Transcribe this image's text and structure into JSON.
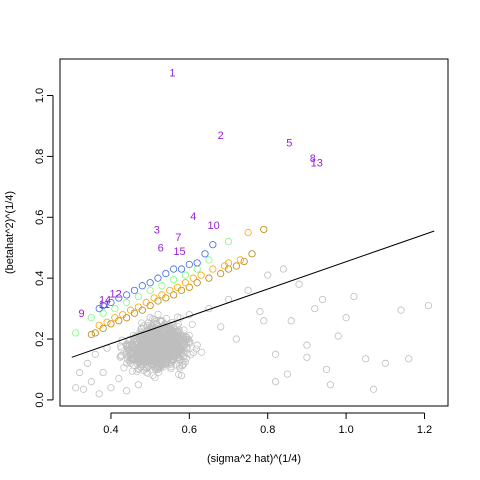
{
  "chart_data": {
    "type": "scatter",
    "title": "",
    "xlabel": "(sigma^2 hat)^(1/4)",
    "ylabel": "(betahat^2)^(1/4)",
    "xlim": [
      0.27,
      1.26
    ],
    "ylim": [
      -0.02,
      1.12
    ],
    "x_ticks": [
      0.4,
      0.6,
      0.8,
      1.0,
      1.2
    ],
    "x_tick_labels": [
      "0.4",
      "0.6",
      "0.8",
      "1.0",
      "1.2"
    ],
    "y_ticks": [
      0.0,
      0.2,
      0.4,
      0.6,
      0.8,
      1.0
    ],
    "y_tick_labels": [
      "0.0",
      "0.2",
      "0.4",
      "0.6",
      "0.8",
      "1.0"
    ],
    "grid": false,
    "legend": "none",
    "fit_line": {
      "x": [
        0.3,
        1.225
      ],
      "y": [
        0.14,
        0.555
      ],
      "color": "#000000"
    },
    "colors": {
      "gray": "#bebebe",
      "darkorange": "#b8860b",
      "orange": "#ffa500",
      "green": "#7cfc7c",
      "blue": "#4169e1",
      "purple": "#9a1fd8"
    },
    "series": [
      {
        "color_key": "gray",
        "x": [
          0.31,
          0.32,
          0.33,
          0.34,
          0.35,
          0.36,
          0.37,
          0.38,
          0.39,
          0.4,
          0.42,
          0.44,
          0.45,
          0.47,
          0.48,
          0.5,
          0.52,
          0.55,
          0.58,
          0.6,
          0.62,
          0.65,
          0.68,
          0.7,
          0.72,
          0.75,
          0.78,
          0.8,
          0.82,
          0.84,
          0.86,
          0.88,
          0.9,
          0.92,
          0.94,
          0.96,
          0.98,
          1.0,
          1.02,
          1.05,
          1.07,
          1.1,
          1.14,
          1.16,
          1.21,
          0.85,
          0.9,
          0.95,
          0.82,
          0.79
        ],
        "y": [
          0.04,
          0.09,
          0.035,
          0.12,
          0.06,
          0.15,
          0.02,
          0.09,
          0.17,
          0.04,
          0.07,
          0.03,
          0.12,
          0.05,
          0.2,
          0.15,
          0.1,
          0.22,
          0.08,
          0.28,
          0.18,
          0.3,
          0.24,
          0.33,
          0.2,
          0.36,
          0.29,
          0.41,
          0.15,
          0.43,
          0.26,
          0.38,
          0.18,
          0.3,
          0.33,
          0.05,
          0.21,
          0.27,
          0.34,
          0.135,
          0.035,
          0.12,
          0.295,
          0.135,
          0.31,
          0.085,
          0.14,
          0.1,
          0.06,
          0.26
        ]
      },
      {
        "color_key": "darkorange",
        "x": [
          0.35,
          0.36,
          0.38,
          0.4,
          0.42,
          0.44,
          0.46,
          0.48,
          0.5,
          0.52,
          0.54,
          0.56,
          0.58,
          0.6,
          0.62,
          0.65,
          0.68,
          0.7,
          0.72,
          0.74,
          0.76,
          0.79
        ],
        "y": [
          0.215,
          0.22,
          0.235,
          0.25,
          0.26,
          0.27,
          0.285,
          0.295,
          0.31,
          0.325,
          0.335,
          0.345,
          0.36,
          0.37,
          0.385,
          0.4,
          0.415,
          0.43,
          0.44,
          0.455,
          0.48,
          0.56
        ]
      },
      {
        "color_key": "orange",
        "x": [
          0.37,
          0.39,
          0.41,
          0.43,
          0.45,
          0.47,
          0.49,
          0.51,
          0.53,
          0.55,
          0.57,
          0.59,
          0.61,
          0.63,
          0.66,
          0.69,
          0.7,
          0.73,
          0.75
        ],
        "y": [
          0.245,
          0.255,
          0.27,
          0.28,
          0.295,
          0.305,
          0.32,
          0.335,
          0.345,
          0.36,
          0.37,
          0.385,
          0.4,
          0.41,
          0.43,
          0.44,
          0.45,
          0.46,
          0.55
        ]
      },
      {
        "color_key": "green",
        "x": [
          0.31,
          0.35,
          0.38,
          0.41,
          0.44,
          0.47,
          0.5,
          0.53,
          0.56,
          0.59,
          0.62,
          0.65,
          0.7
        ],
        "y": [
          0.22,
          0.27,
          0.285,
          0.3,
          0.32,
          0.34,
          0.36,
          0.375,
          0.395,
          0.41,
          0.43,
          0.46,
          0.52
        ]
      },
      {
        "color_key": "blue",
        "x": [
          0.37,
          0.38,
          0.4,
          0.42,
          0.44,
          0.46,
          0.48,
          0.5,
          0.52,
          0.54,
          0.56,
          0.58,
          0.6,
          0.62,
          0.64,
          0.66
        ],
        "y": [
          0.3,
          0.31,
          0.32,
          0.335,
          0.345,
          0.36,
          0.375,
          0.385,
          0.4,
          0.415,
          0.43,
          0.43,
          0.445,
          0.45,
          0.48,
          0.51
        ]
      }
    ],
    "labels": [
      {
        "text": "1",
        "x": 0.557,
        "y": 1.075
      },
      {
        "text": "2",
        "x": 0.68,
        "y": 0.87
      },
      {
        "text": "5",
        "x": 0.855,
        "y": 0.845
      },
      {
        "text": "8",
        "x": 0.915,
        "y": 0.795
      },
      {
        "text": "13",
        "x": 0.925,
        "y": 0.78
      },
      {
        "text": "4",
        "x": 0.61,
        "y": 0.605
      },
      {
        "text": "10",
        "x": 0.662,
        "y": 0.575
      },
      {
        "text": "3",
        "x": 0.517,
        "y": 0.56
      },
      {
        "text": "7",
        "x": 0.572,
        "y": 0.535
      },
      {
        "text": "6",
        "x": 0.527,
        "y": 0.5
      },
      {
        "text": "15",
        "x": 0.575,
        "y": 0.49
      },
      {
        "text": "12",
        "x": 0.412,
        "y": 0.35
      },
      {
        "text": "14",
        "x": 0.385,
        "y": 0.33
      },
      {
        "text": "11",
        "x": 0.383,
        "y": 0.315
      },
      {
        "text": "9",
        "x": 0.325,
        "y": 0.285
      }
    ]
  }
}
